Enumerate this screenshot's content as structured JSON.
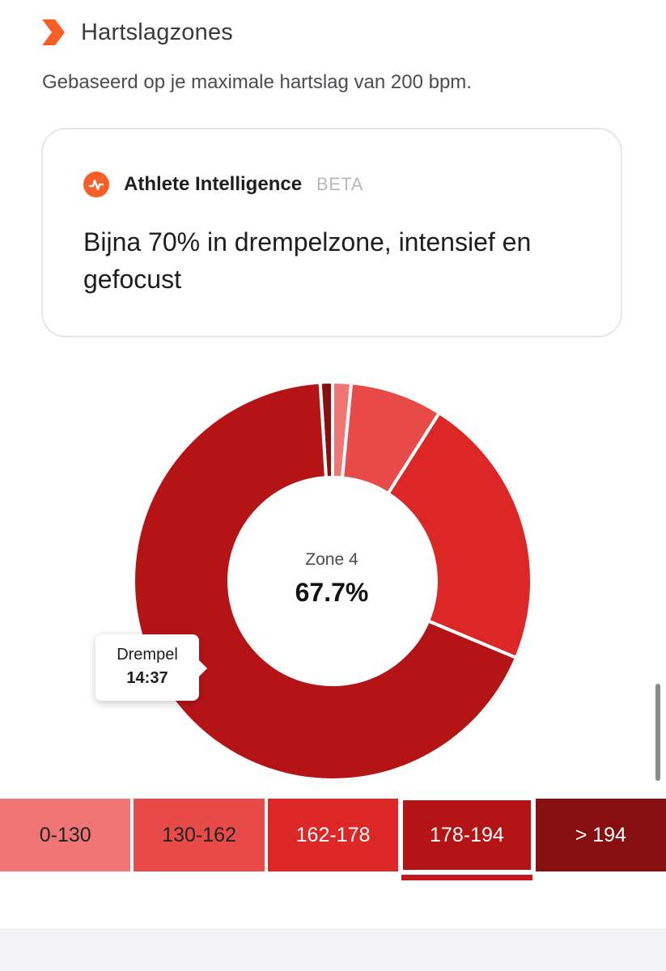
{
  "header": {
    "title": "Hartslagzones",
    "subtitle": "Gebaseerd op je maximale hartslag van 200 bpm."
  },
  "ai_card": {
    "name": "Athlete Intelligence",
    "badge": "BETA",
    "summary": "Bijna 70% in drempelzone, intensief en gefocust"
  },
  "donut": {
    "center_label": "Zone 4",
    "center_value": "67.7%",
    "tooltip": {
      "label": "Drempel",
      "value": "14:37"
    }
  },
  "chart_data": {
    "type": "pie",
    "variant": "donut",
    "categories": [
      "0-130",
      "130-162",
      "162-178",
      "178-194",
      "> 194"
    ],
    "values": [
      1.5,
      7.5,
      22.3,
      67.7,
      1.0
    ],
    "colors": [
      "#f07575",
      "#e84a4a",
      "#dd2626",
      "#b51417",
      "#870f10"
    ],
    "highlighted_index": 3
  },
  "zones": [
    {
      "label": "0-130"
    },
    {
      "label": "130-162"
    },
    {
      "label": "162-178"
    },
    {
      "label": "178-194"
    },
    {
      "label": "> 194"
    }
  ],
  "selected_zone_index": 3,
  "icons": {
    "header": "chevron-arrow-icon",
    "ai": "athlete-intelligence-icon"
  },
  "colors": {
    "accent": "#f75f26"
  }
}
